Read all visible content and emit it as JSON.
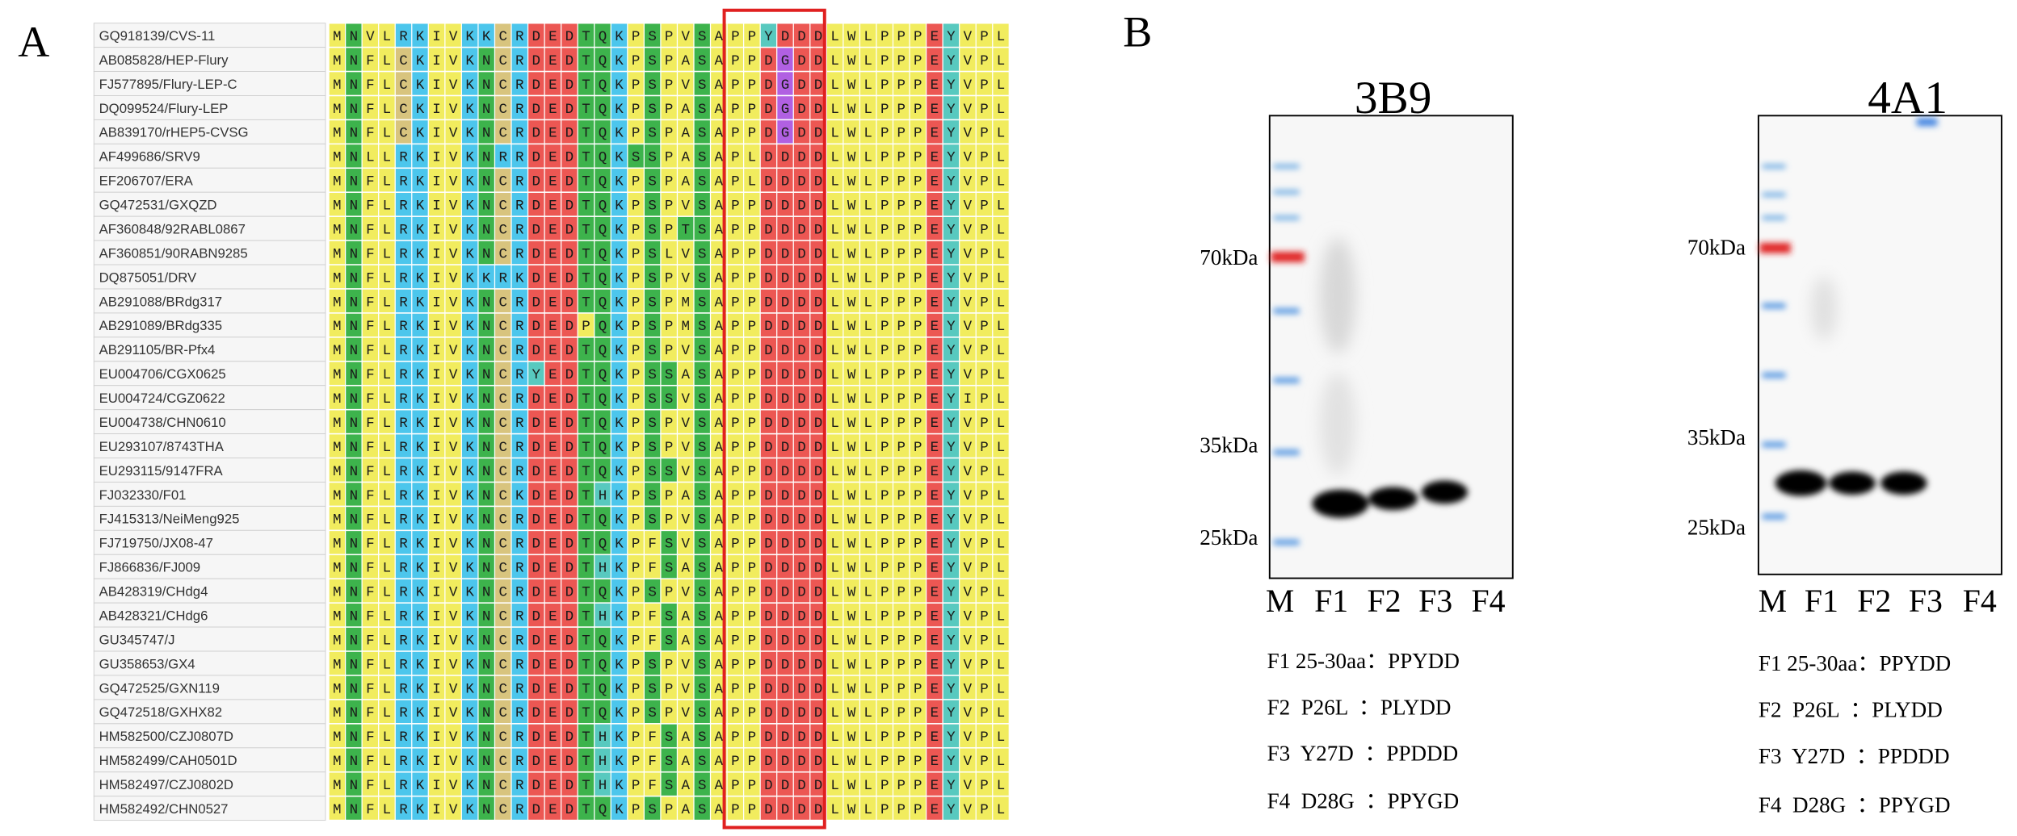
{
  "panel_a": {
    "label": "A",
    "sequences": [
      {
        "name": "GQ918139/CVS-11",
        "seq": "MNVLRKIVKKCRDEDTQKPSPVSAPPYDDDLWLPPPEYVPL"
      },
      {
        "name": "AB085828/HEP-Flury",
        "seq": "MNFLCKIVKNCRDEDTQKPSPASAPPDGDDLWLPPPEYVPL"
      },
      {
        "name": "FJ577895/Flury-LEP-C",
        "seq": "MNFLCKIVKNCRDEDTQKPSPVSAPPDGDDLWLPPPEYVPL"
      },
      {
        "name": "DQ099524/Flury-LEP",
        "seq": "MNFLCKIVKNCRDEDTQKPSPASAPPDGDDLWLPPPEYVPL"
      },
      {
        "name": "AB839170/rHEP5-CVSG",
        "seq": "MNFLCKIVKNCRDEDTQKPSPASAPPDGDDLWLPPPEYVPL"
      },
      {
        "name": "AF499686/SRV9",
        "seq": "MNLLRKIVKNRRDEDTQKSSPASAPLDDDDLWLPPPEYVPL"
      },
      {
        "name": "EF206707/ERA",
        "seq": "MNFLRKIVKNCRDEDTQKPSPASAPLDDDDLWLPPPEYVPL"
      },
      {
        "name": "GQ472531/GXQZD",
        "seq": "MNFLRKIVKNCRDEDTQKPSPVSAPPDDDDLWLPPPEYVPL"
      },
      {
        "name": "AF360848/92RABL0867",
        "seq": "MNFLRKIVKNCRDEDTQKPSPTSAPPDDDDLWLPPPEYVPL"
      },
      {
        "name": "AF360851/90RABN9285",
        "seq": "MNFLRKIVKNCRDEDTQKPSLVSAPPDDDDLWLPPPEYVPL"
      },
      {
        "name": "DQ875051/DRV",
        "seq": "MNFLRKIVKKRKDEDTQKPSPVSAPPDDDDLWLPPPEYVPL"
      },
      {
        "name": "AB291088/BRdg317",
        "seq": "MNFLRKIVKNCRDEDTQKPSPMSAPPDDDDLWLPPPEYVPL"
      },
      {
        "name": "AB291089/BRdg335",
        "seq": "MNFLRKIVKNCRDEDPQKPSPMSAPPDDDDLWLPPPEYVPL"
      },
      {
        "name": "AB291105/BR-Pfx4",
        "seq": "MNFLRKIVKNCRDEDTQKPSPVSAPPDDDDLWLPPPEYVPL"
      },
      {
        "name": "EU004706/CGX0625",
        "seq": "MNFLRKIVKNCRYEDTQKPSSASAPPDDDDLWLPPPEYVPL"
      },
      {
        "name": "EU004724/CGZ0622",
        "seq": "MNFLRKIVKNCRDEDTQKPSSVSAPPDDDDLWLPPPEYIPL"
      },
      {
        "name": "EU004738/CHN0610",
        "seq": "MNFLRKIVKNCRDEDTQKPSPVSAPPDDDDLWLPPPEYVPL"
      },
      {
        "name": "EU293107/8743THA",
        "seq": "MNFLRKIVKNCRDEDTQKPSPVSAPPDDDDLWLPPPEYVPL"
      },
      {
        "name": "EU293115/9147FRA",
        "seq": "MNFLRKIVKNCRDEDTQKPSSVSAPPDDDDLWLPPPEYVPL"
      },
      {
        "name": "FJ032330/F01",
        "seq": "MNFLRKIVKNCKDEDTHKPSPASAPPDDDDLWLPPPEYVPL"
      },
      {
        "name": "FJ415313/NeiMeng925",
        "seq": "MNFLRKIVKNCRDEDTQKPSPVSAPPDDDDLWLPPPEYVPL"
      },
      {
        "name": "FJ719750/JX08-47",
        "seq": "MNFLRKIVKNCRDEDTQKPFSVSAPPDDDDLWLPPPEYVPL"
      },
      {
        "name": "FJ866836/FJ009",
        "seq": "MNFLRKIVKNCRDEDTHKPFSASAPPDDDDLWLPPPEYVPL"
      },
      {
        "name": "AB428319/CHdg4",
        "seq": "MNFLRKIVKNCRDEDTQKPSPVSAPPDDDDLWLPPPEYVPL"
      },
      {
        "name": "AB428321/CHdg6",
        "seq": "MNFLRKIVKNCRDEDTHKPFSASAPPDDDDLWLPPPEYVPL"
      },
      {
        "name": "GU345747/J",
        "seq": "MNFLRKIVKNCRDEDTQKPFSASAPPDDDDLWLPPPEYVPL"
      },
      {
        "name": "GU358653/GX4",
        "seq": "MNFLRKIVKNCRDEDTQKPSPVSAPPDDDDLWLPPPEYVPL"
      },
      {
        "name": "GQ472525/GXN119",
        "seq": "MNFLRKIVKNCRDEDTQKPSPVSAPPDDDDLWLPPPEYVPL"
      },
      {
        "name": "GQ472518/GXHX82",
        "seq": "MNFLRKIVKNCRDEDTQKPSPVSAPPDDDDLWLPPPEYVPL"
      },
      {
        "name": "HM582500/CZJ0807D",
        "seq": "MNFLRKIVKNCRDEDTHKPFSASAPPDDDDLWLPPPEYVPL"
      },
      {
        "name": "HM582499/CAH0501D",
        "seq": "MNFLRKIVKNCRDEDTHKPFSASAPPDDDDLWLPPPEYVPL"
      },
      {
        "name": "HM582497/CZJ0802D",
        "seq": "MNFLRKIVKNCRDEDTHKPFSASAPPDDDDLWLPPPEYVPL"
      },
      {
        "name": "HM582492/CHN0527",
        "seq": "MNFLRKIVKNCRDEDTQKPSPASAPPDDDDLWLPPPEYVPL"
      }
    ]
  },
  "panel_b": {
    "label": "B",
    "blots": [
      {
        "title": "3B9",
        "markers": [
          "70kDa",
          "35kDa",
          "25kDa"
        ],
        "lanes": [
          "M",
          "F1",
          "F2",
          "F3",
          "F4"
        ],
        "notes": [
          "F1 25-30aa：PPYDD",
          "F2  P26L  ：PLYDD",
          "F3  Y27D  ：PPDDD",
          "F4  D28G  ：PPYGD"
        ]
      },
      {
        "title": "4A1",
        "markers": [
          "70kDa",
          "35kDa",
          "25kDa"
        ],
        "lanes": [
          "M",
          "F1",
          "F2",
          "F3",
          "F4"
        ],
        "notes": [
          "F1 25-30aa：PPYDD",
          "F2  P26L  ：PLYDD",
          "F3  Y27D  ：PPDDD",
          "F4  D28G  ：PPYGD"
        ]
      }
    ]
  }
}
